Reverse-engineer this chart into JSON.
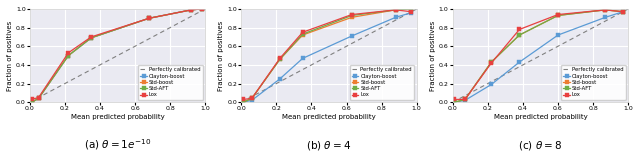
{
  "subplots": [
    {
      "title": "(a) $\\theta = 1e^{-10}$",
      "xlabel": "Mean predicted probability",
      "ylabel": "Fraction of positives",
      "xlim": [
        0.0,
        1.0
      ],
      "ylim": [
        0.0,
        1.0
      ],
      "series": {
        "Clayton-boost": {
          "x": [
            0.01,
            0.05,
            0.22,
            0.35,
            0.68,
            0.92,
            0.98
          ],
          "y": [
            0.0,
            0.04,
            0.5,
            0.69,
            0.9,
            0.99,
            1.0
          ],
          "color": "#5b9bd5",
          "marker": "s"
        },
        "Std-boost": {
          "x": [
            0.01,
            0.05,
            0.22,
            0.35,
            0.68,
            0.92,
            0.98
          ],
          "y": [
            0.0,
            0.04,
            0.5,
            0.69,
            0.9,
            0.99,
            1.0
          ],
          "color": "#ed7d31",
          "marker": "s"
        },
        "Std-AFT": {
          "x": [
            0.01,
            0.05,
            0.22,
            0.35,
            0.68,
            0.92,
            0.98
          ],
          "y": [
            0.0,
            0.04,
            0.5,
            0.69,
            0.9,
            0.99,
            1.0
          ],
          "color": "#70ad47",
          "marker": "s"
        },
        "Lox": {
          "x": [
            0.01,
            0.05,
            0.22,
            0.35,
            0.68,
            0.92,
            0.98
          ],
          "y": [
            0.03,
            0.05,
            0.53,
            0.7,
            0.9,
            0.99,
            1.0
          ],
          "color": "#e84040",
          "marker": "s"
        }
      }
    },
    {
      "title": "(b) $\\theta = 4$",
      "xlabel": "Mean predicted probability",
      "ylabel": "Fraction of positives",
      "xlim": [
        0.0,
        1.0
      ],
      "ylim": [
        0.0,
        1.0
      ],
      "series": {
        "Clayton-boost": {
          "x": [
            0.01,
            0.06,
            0.22,
            0.35,
            0.63,
            0.88,
            0.97
          ],
          "y": [
            0.0,
            0.02,
            0.25,
            0.47,
            0.71,
            0.91,
            0.96
          ],
          "color": "#5b9bd5",
          "marker": "s"
        },
        "Std-boost": {
          "x": [
            0.01,
            0.06,
            0.22,
            0.35,
            0.63,
            0.88,
            0.97
          ],
          "y": [
            0.0,
            0.04,
            0.46,
            0.72,
            0.91,
            0.99,
            1.0
          ],
          "color": "#ed7d31",
          "marker": "s"
        },
        "Std-AFT": {
          "x": [
            0.01,
            0.06,
            0.22,
            0.35,
            0.63,
            0.88,
            0.97
          ],
          "y": [
            0.0,
            0.04,
            0.46,
            0.73,
            0.93,
            0.99,
            1.0
          ],
          "color": "#70ad47",
          "marker": "s"
        },
        "Lox": {
          "x": [
            0.01,
            0.06,
            0.22,
            0.35,
            0.63,
            0.88,
            0.97
          ],
          "y": [
            0.03,
            0.04,
            0.47,
            0.75,
            0.94,
            0.99,
            0.97
          ],
          "color": "#e84040",
          "marker": "s"
        }
      }
    },
    {
      "title": "(c) $\\theta = 8$",
      "xlabel": "Mean predicted probability",
      "ylabel": "Fraction of positives",
      "xlim": [
        0.0,
        1.0
      ],
      "ylim": [
        0.0,
        1.0
      ],
      "series": {
        "Clayton-boost": {
          "x": [
            0.01,
            0.07,
            0.22,
            0.38,
            0.6,
            0.87,
            0.97
          ],
          "y": [
            0.0,
            0.02,
            0.19,
            0.43,
            0.72,
            0.91,
            0.97
          ],
          "color": "#5b9bd5",
          "marker": "s"
        },
        "Std-boost": {
          "x": [
            0.01,
            0.07,
            0.22,
            0.38,
            0.6,
            0.87,
            0.97
          ],
          "y": [
            0.0,
            0.03,
            0.43,
            0.72,
            0.93,
            0.99,
            0.97
          ],
          "color": "#ed7d31",
          "marker": "s"
        },
        "Std-AFT": {
          "x": [
            0.01,
            0.07,
            0.22,
            0.38,
            0.6,
            0.87,
            0.97
          ],
          "y": [
            0.0,
            0.03,
            0.43,
            0.72,
            0.93,
            0.99,
            0.97
          ],
          "color": "#70ad47",
          "marker": "s"
        },
        "Lox": {
          "x": [
            0.01,
            0.07,
            0.22,
            0.38,
            0.6,
            0.87,
            0.97
          ],
          "y": [
            0.03,
            0.03,
            0.42,
            0.78,
            0.94,
            0.99,
            0.97
          ],
          "color": "#e84040",
          "marker": "s"
        }
      }
    }
  ],
  "subtitles": [
    "(a) $\\theta = 1e^{-10}$",
    "(b) $\\theta = 4$",
    "(c) $\\theta = 8$"
  ],
  "bg_color": "#eaeaf2",
  "grid_color": "white",
  "legend_loc": "lower right",
  "xlabel": "Mean predicted probability",
  "ylabel": "Fraction of positives"
}
